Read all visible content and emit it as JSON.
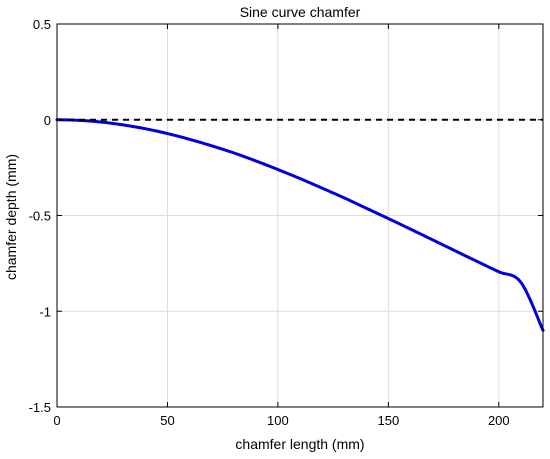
{
  "chart_data": {
    "type": "line",
    "title": "Sine curve chamfer",
    "xlabel": "chamfer length (mm)",
    "ylabel": "chamfer depth (mm)",
    "xlim": [
      0,
      220
    ],
    "ylim": [
      -1.5,
      0.5
    ],
    "x_ticks": [
      0,
      50,
      100,
      150,
      200
    ],
    "y_ticks": [
      0.5,
      0,
      -0.5,
      -1,
      -1.5
    ],
    "x_tick_labels": [
      "0",
      "50",
      "100",
      "150",
      "200"
    ],
    "y_tick_labels": [
      "0.5",
      "0",
      "-0.5",
      "-1",
      "-1.5"
    ],
    "grid": true,
    "series": [
      {
        "style": "solid",
        "color": "#0000dd",
        "x": [
          0,
          10,
          20,
          30,
          40,
          50,
          60,
          70,
          80,
          90,
          100,
          110,
          120,
          130,
          140,
          150,
          160,
          170,
          180,
          190,
          200,
          210,
          220
        ],
        "y": [
          0,
          -0.003,
          -0.012,
          -0.027,
          -0.047,
          -0.072,
          -0.102,
          -0.136,
          -0.173,
          -0.215,
          -0.26,
          -0.307,
          -0.357,
          -0.408,
          -0.462,
          -0.516,
          -0.571,
          -0.627,
          -0.683,
          -0.739,
          -0.794,
          -0.849,
          -1.1
        ]
      },
      {
        "style": "dashed",
        "color": "#000000",
        "x": [
          0,
          220
        ],
        "y": [
          0,
          0
        ]
      }
    ]
  }
}
